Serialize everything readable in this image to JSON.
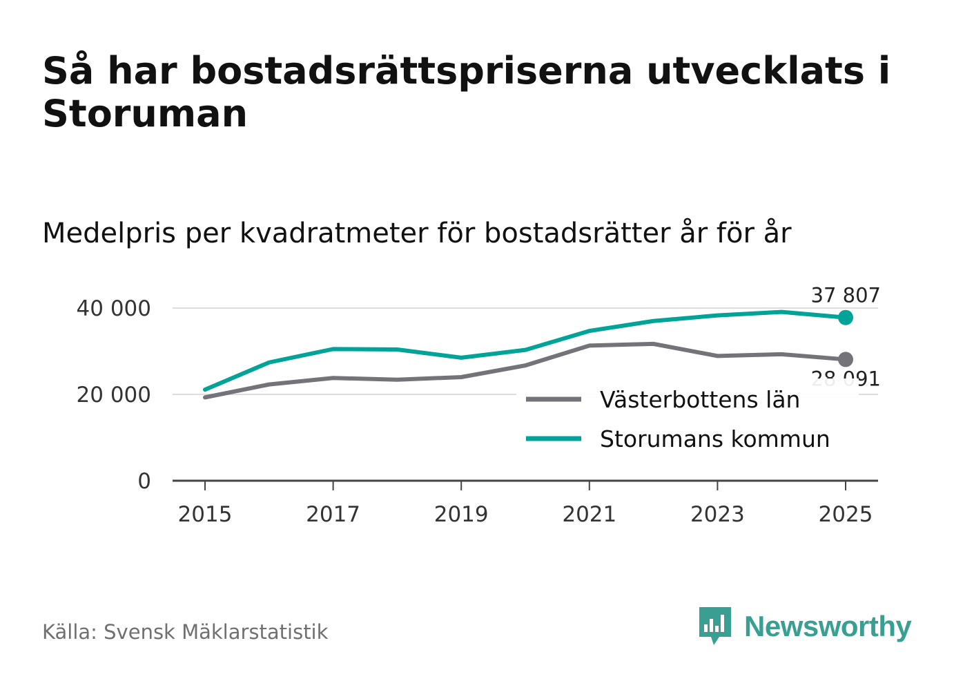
{
  "title": "Så har bostadsrättspriserna utvecklats i Storuman",
  "subtitle": "Medelpris per kvadratmeter för bostadsrätter år för år",
  "source": "Källa: Svensk Mäklarstatistik",
  "brand": "Newsworthy",
  "colors": {
    "storuman": "#00a398",
    "vasterbotten": "#75737a",
    "grid": "#dddddd",
    "axis": "#444444",
    "brand": "#3a9f93"
  },
  "chart_data": {
    "type": "line",
    "x": [
      2015,
      2016,
      2017,
      2018,
      2019,
      2020,
      2021,
      2022,
      2023,
      2024,
      2025
    ],
    "xticks": [
      "2015",
      "2017",
      "2019",
      "2021",
      "2023",
      "2025"
    ],
    "yticks": [
      "0",
      "20 000",
      "40 000"
    ],
    "ylim": [
      0,
      40000
    ],
    "grid": true,
    "legend_position": "bottom-right",
    "series": [
      {
        "name": "Västerbottens län",
        "color": "#75737a",
        "values": [
          19300,
          22300,
          23800,
          23400,
          24000,
          26700,
          31300,
          31700,
          28900,
          29300,
          28091
        ],
        "end_label": "28 091"
      },
      {
        "name": "Storumans kommun",
        "color": "#00a398",
        "values": [
          21100,
          27400,
          30500,
          30400,
          28500,
          30300,
          34700,
          37000,
          38300,
          39100,
          37807
        ],
        "end_label": "37 807"
      }
    ]
  }
}
